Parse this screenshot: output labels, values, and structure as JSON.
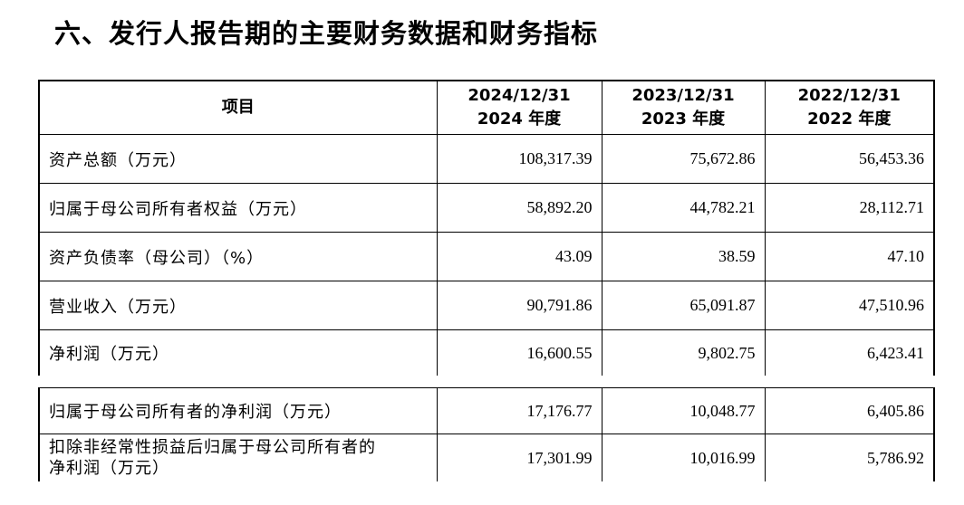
{
  "section_title": "六、发行人报告期的主要财务数据和财务指标",
  "table": {
    "headers": {
      "item": "项目",
      "col2024_line1": "2024/12/31",
      "col2024_line2": "2024 年度",
      "col2023_line1": "2023/12/31",
      "col2023_line2": "2023 年度",
      "col2022_line1": "2022/12/31",
      "col2022_line2": "2022 年度"
    },
    "rows_part1": [
      {
        "label": "资产总额（万元）",
        "v2024": "108,317.39",
        "v2023": "75,672.86",
        "v2022": "56,453.36"
      },
      {
        "label": "归属于母公司所有者权益（万元）",
        "v2024": "58,892.20",
        "v2023": "44,782.21",
        "v2022": "28,112.71"
      },
      {
        "label": "资产负债率（母公司）（%）",
        "v2024": "43.09",
        "v2023": "38.59",
        "v2022": "47.10"
      },
      {
        "label": "营业收入（万元）",
        "v2024": "90,791.86",
        "v2023": "65,091.87",
        "v2022": "47,510.96"
      },
      {
        "label": "净利润（万元）",
        "v2024": "16,600.55",
        "v2023": "9,802.75",
        "v2022": "6,423.41"
      }
    ],
    "rows_part2": [
      {
        "label": "归属于母公司所有者的净利润（万元）",
        "v2024": "17,176.77",
        "v2023": "10,048.77",
        "v2022": "6,405.86"
      },
      {
        "label_line1": "扣除非经常性损益后归属于母公司所有者的",
        "label_line2": "净利润（万元）",
        "v2024": "17,301.99",
        "v2023": "10,016.99",
        "v2022": "5,786.92"
      }
    ]
  }
}
